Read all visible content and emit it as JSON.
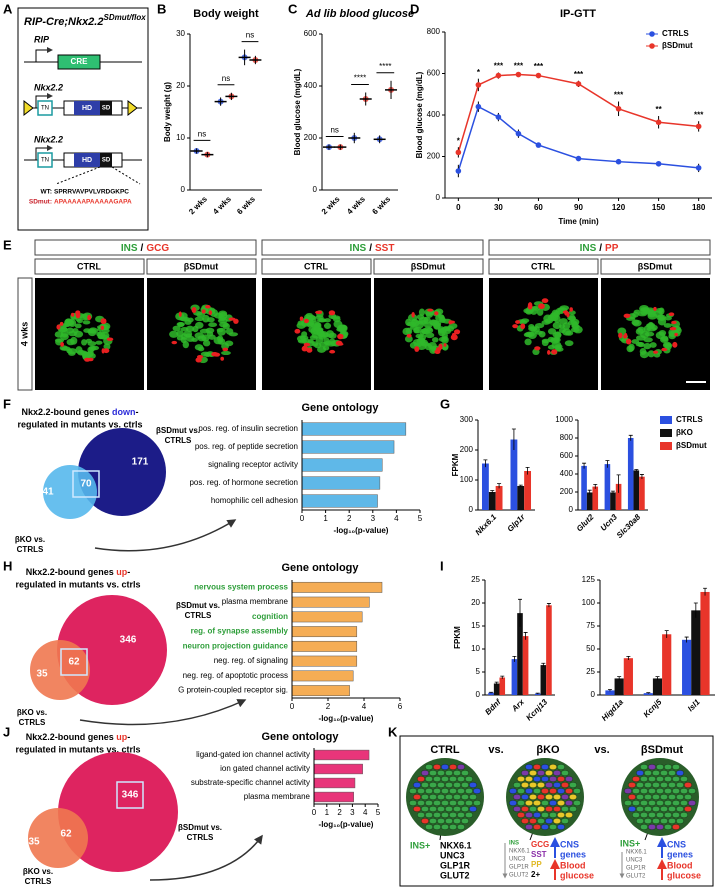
{
  "panel_letters": [
    "A",
    "B",
    "C",
    "D",
    "E",
    "F",
    "G",
    "H",
    "I",
    "J",
    "K"
  ],
  "panel_a": {
    "title": "RIP-Cre;Nkx2.2",
    "superscript": "SDmut/flox",
    "promoter_1": "RIP",
    "cre": "CRE",
    "gene_2": "Nkx2.2",
    "gene_3": "Nkx2.2",
    "tn": [
      "TN",
      "TN"
    ],
    "hd": [
      "HD",
      "HD"
    ],
    "sd": [
      "SD",
      "SD"
    ],
    "wt_label": "WT:",
    "wt_seq": "SPRRVAVPVLVRDGKPC",
    "mut_label": "SDmut:",
    "mut_seq": "APAAAAAPAAAAAGAPA"
  },
  "chart_data": [
    {
      "type": "dot",
      "title": "Body weight",
      "ylabel": "Body weight (g)",
      "categories": [
        "2 wks",
        "4 wks",
        "6 wks"
      ],
      "series": [
        {
          "color": "#2b50e0",
          "values": [
            7.5,
            17,
            25.5
          ],
          "errors": [
            0.5,
            0.8,
            1.5
          ]
        },
        {
          "color": "#e8352a",
          "values": [
            6.8,
            18,
            25
          ],
          "errors": [
            0.5,
            0.7,
            0.8
          ]
        }
      ],
      "ylim": [
        0,
        30
      ],
      "yticks": [
        0,
        10,
        20,
        30
      ],
      "annotations": [
        "ns",
        "ns",
        "ns"
      ]
    },
    {
      "type": "dot",
      "title": "Ad lib blood glucose",
      "ylabel": "Blood glucose (mg/dL)",
      "categories": [
        "2 wks",
        "4 wks",
        "6 wks"
      ],
      "series": [
        {
          "color": "#2b50e0",
          "values": [
            165,
            200,
            195
          ],
          "errors": [
            10,
            20,
            15
          ]
        },
        {
          "color": "#e8352a",
          "values": [
            165,
            350,
            385
          ],
          "errors": [
            10,
            25,
            35
          ]
        }
      ],
      "ylim": [
        0,
        600
      ],
      "yticks": [
        0,
        200,
        400,
        600
      ],
      "annotations": [
        "ns",
        "****",
        "****"
      ]
    },
    {
      "type": "line",
      "title": "IP-GTT",
      "xlabel": "Time (min)",
      "ylabel": "Blood glucose (mg/dL)",
      "x": [
        0,
        15,
        30,
        45,
        60,
        90,
        120,
        150,
        180
      ],
      "series": [
        {
          "name": "CTRLS",
          "color": "#2b50e0",
          "values": [
            130,
            440,
            390,
            310,
            255,
            190,
            175,
            165,
            145
          ],
          "errors": [
            30,
            25,
            20,
            20,
            10,
            8,
            8,
            8,
            20
          ]
        },
        {
          "name": "βSDmut",
          "color": "#e8352a",
          "values": [
            220,
            545,
            590,
            595,
            590,
            550,
            430,
            365,
            345
          ],
          "errors": [
            25,
            30,
            15,
            10,
            12,
            15,
            35,
            30,
            25
          ]
        }
      ],
      "annotations": [
        "*",
        "*",
        "***",
        "***",
        "***",
        "***",
        "***",
        "**",
        "***"
      ],
      "xlim": [
        -10,
        190
      ],
      "xticks": [
        0,
        30,
        60,
        90,
        120,
        150,
        180
      ],
      "ylim": [
        0,
        800
      ],
      "yticks": [
        0,
        200,
        400,
        600,
        800
      ],
      "legend": "upper right"
    },
    {
      "type": "hbar",
      "title": "Gene ontology",
      "xlabel": "-log₁₀(p-value)",
      "color": "#5fb8e8",
      "categories": [
        "pos. reg. of insulin secretion",
        "pos. reg. of peptide secretion",
        "signaling receptor activity",
        "pos. reg. of hormone secretion",
        "homophilic cell adhesion"
      ],
      "values": [
        4.4,
        3.9,
        3.4,
        3.3,
        3.2
      ],
      "xlim": [
        0,
        5
      ],
      "xticks": [
        0,
        1,
        2,
        3,
        4,
        5
      ]
    },
    {
      "type": "grouped",
      "ylabel": "FPKM",
      "series": [
        {
          "name": "CTRLS",
          "color": "#2b50e0"
        },
        {
          "name": "βKO",
          "color": "#111111"
        },
        {
          "name": "βSDmut",
          "color": "#e8352a"
        }
      ],
      "subplots": [
        {
          "categories": [
            "Nkx6.1",
            "Glp1r"
          ],
          "ylim": [
            0,
            300
          ],
          "yticks": [
            0,
            100,
            200,
            300
          ],
          "values": [
            [
              155,
              235
            ],
            [
              60,
              80
            ],
            [
              80,
              130
            ]
          ],
          "errors": [
            [
              12,
              35
            ],
            [
              5,
              3
            ],
            [
              8,
              12
            ]
          ]
        },
        {
          "categories": [
            "Glut2",
            "Ucn3",
            "Slc30a8"
          ],
          "ylim": [
            0,
            1000
          ],
          "yticks": [
            0,
            200,
            400,
            600,
            800,
            1000
          ],
          "values": [
            [
              490,
              510,
              800
            ],
            [
              195,
              195,
              440
            ],
            [
              260,
              290,
              370
            ]
          ],
          "errors": [
            [
              30,
              40,
              30
            ],
            [
              25,
              15,
              10
            ],
            [
              25,
              100,
              25
            ]
          ]
        }
      ]
    },
    {
      "type": "hbar",
      "title": "Gene ontology",
      "xlabel": "-log₁₀(p-value)",
      "color": "#f5ad55",
      "categories": [
        "nervous system process",
        "plasma membrane",
        "cognition",
        "reg. of synapse assembly",
        "neuron projection guidance",
        "neg. reg. of signaling",
        "neg. reg. of apoptotic process",
        "G protein-coupled receptor sig."
      ],
      "label_colors": [
        "#2e9e3a",
        "#000000",
        "#2e9e3a",
        "#2e9e3a",
        "#2e9e3a",
        "#000000",
        "#000000",
        "#000000"
      ],
      "values": [
        5.0,
        4.3,
        3.9,
        3.6,
        3.6,
        3.6,
        3.4,
        3.2
      ],
      "xlim": [
        0,
        6
      ],
      "xticks": [
        0,
        2,
        4,
        6
      ]
    },
    {
      "type": "grouped",
      "ylabel": "FPKM",
      "series": [
        {
          "color": "#2b50e0"
        },
        {
          "color": "#111111"
        },
        {
          "color": "#e8352a"
        }
      ],
      "subplots": [
        {
          "categories": [
            "Bdnf",
            "Arx",
            "Kcnj13"
          ],
          "ylim": [
            0,
            25
          ],
          "yticks": [
            0,
            5,
            10,
            15,
            20,
            25
          ],
          "values": [
            [
              0.5,
              7.8,
              0.3
            ],
            [
              2.5,
              17.8,
              6.5
            ],
            [
              3.8,
              12.8,
              19.5
            ]
          ],
          "errors": [
            [
              0.1,
              0.6,
              0.1
            ],
            [
              0.3,
              3,
              0.4
            ],
            [
              0.3,
              0.8,
              0.4
            ]
          ]
        },
        {
          "categories": [
            "Higd1a",
            "Kcnj5",
            "Isl1"
          ],
          "ylim": [
            0,
            125
          ],
          "yticks": [
            0,
            25,
            50,
            75,
            100,
            125
          ],
          "values": [
            [
              5,
              2,
              60
            ],
            [
              18,
              18,
              92
            ],
            [
              40,
              66,
              112
            ]
          ],
          "errors": [
            [
              1,
              0.5,
              3
            ],
            [
              2,
              2,
              8
            ],
            [
              2,
              4,
              4
            ]
          ]
        }
      ]
    },
    {
      "type": "hbar",
      "title": "Gene ontology",
      "xlabel": "-log₁₀(p-value)",
      "color": "#e8357a",
      "categories": [
        "ligand-gated ion channel activity",
        "ion gated channel activity",
        "substrate-specific channel activity",
        "plasma membrane"
      ],
      "values": [
        4.3,
        3.8,
        3.2,
        3.1
      ],
      "xlim": [
        0,
        5
      ],
      "xticks": [
        0,
        1,
        2,
        3,
        4,
        5
      ]
    }
  ],
  "venns": [
    {
      "title": [
        "Nkx2.2-bound genes ",
        "down",
        "-",
        "regulated in mutants vs. ctrls"
      ],
      "emphasis_color": "#2b2bd8",
      "counts": [
        41,
        70,
        171
      ],
      "big_label": [
        "βSDmut vs.",
        "CTRLS"
      ],
      "small_label": [
        "βKO vs.",
        "CTRLS"
      ],
      "colors": [
        "#1c1c88",
        "#56b8ec"
      ]
    },
    {
      "title": [
        "Nkx2.2-bound genes ",
        "up",
        "-",
        "regulated in mutants vs. ctrls"
      ],
      "emphasis_color": "#e8352a",
      "counts": [
        35,
        62,
        346
      ],
      "big_label": [
        "βSDmut vs.",
        "CTRLS"
      ],
      "small_label": [
        "βKO vs.",
        "CTRLS"
      ],
      "colors": [
        "#de2460",
        "#f07850"
      ]
    },
    {
      "title": [
        "Nkx2.2-bound genes ",
        "up",
        "-",
        "regulated in mutants vs. ctrls"
      ],
      "emphasis_color": "#e8352a",
      "counts": [
        35,
        62,
        346
      ],
      "big_label": [
        "βSDmut vs.",
        "CTRLS"
      ],
      "small_label": [
        "βKO vs.",
        "CTRLS"
      ],
      "colors": [
        "#de2460",
        "#f07850"
      ]
    }
  ],
  "panel_e": {
    "row_label": "4 wks",
    "groups": [
      {
        "marker_a": "INS",
        "separator": "/",
        "marker_b": "GCG",
        "columns": [
          "CTRL",
          "βSDmut"
        ]
      },
      {
        "marker_a": "INS",
        "separator": "/",
        "marker_b": "SST",
        "columns": [
          "CTRL",
          "βSDmut"
        ]
      },
      {
        "marker_a": "INS",
        "separator": "/",
        "marker_b": "PP",
        "columns": [
          "CTRL",
          "βSDmut"
        ]
      }
    ]
  },
  "panel_k": {
    "headings": [
      "CTRL",
      "vs.",
      "βKO",
      "vs.",
      "βSDmut"
    ],
    "ctrl": {
      "label": "INS+",
      "markers": [
        "NKX6.1",
        "UNC3",
        "GLP1R",
        "GLUT2"
      ]
    },
    "ko": {
      "label": "INS",
      "markers": [
        "NKX6.1",
        "UNC3",
        "GLP1R",
        "GLUT2"
      ],
      "gained": [
        "GCG",
        "SST",
        "PP",
        "2+"
      ],
      "cns": [
        "CNS",
        "genes"
      ],
      "glucose": [
        "Blood",
        "glucose"
      ]
    },
    "mut": {
      "label": "INS+",
      "markers": [
        "NKX6.1",
        "UNC3",
        "GLP1R",
        "GLUT2"
      ],
      "cns": [
        "CNS",
        "genes"
      ],
      "glucose": [
        "Blood",
        "glucose"
      ]
    }
  }
}
